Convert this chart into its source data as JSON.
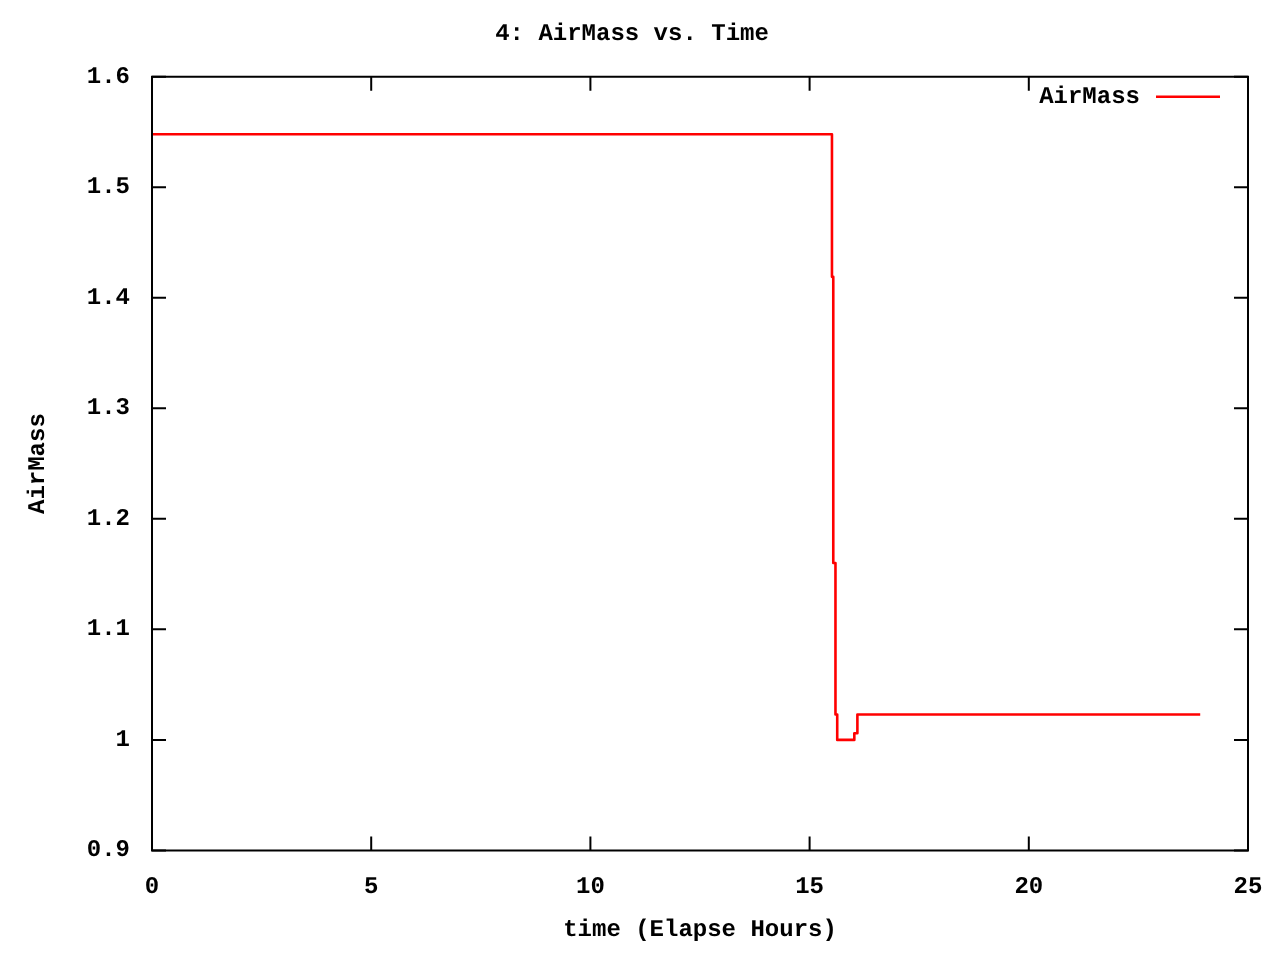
{
  "chart_data": {
    "type": "step",
    "title": "4: AirMass vs. Time",
    "xlabel": "time (Elapse Hours)",
    "ylabel": "AirMass",
    "x": [
      0,
      15.51,
      15.54,
      15.59,
      15.63,
      16.02,
      16.09,
      23.91
    ],
    "series": [
      {
        "name": "AirMass",
        "color": "#ff0000",
        "values": [
          1.548,
          1.419,
          1.16,
          1.023,
          1.0,
          1.006,
          1.023,
          1.023
        ]
      }
    ],
    "xlim": [
      0,
      25
    ],
    "xticks": [
      0,
      5,
      10,
      15,
      20,
      25
    ],
    "ylim": [
      0.9,
      1.6
    ],
    "yticks": [
      {
        "value": 0.9,
        "label": "0.9"
      },
      {
        "value": 1,
        "label": "1"
      },
      {
        "value": 1.1,
        "label": "1.1"
      },
      {
        "value": 1.2,
        "label": "1.2"
      },
      {
        "value": 1.3,
        "label": "1.3"
      },
      {
        "value": 1.4,
        "label": "1.4"
      },
      {
        "value": 1.5,
        "label": "1.5"
      },
      {
        "value": 1.6,
        "label": "1.6"
      }
    ],
    "legend": "top right",
    "marker": "none",
    "line_style": "solid"
  }
}
